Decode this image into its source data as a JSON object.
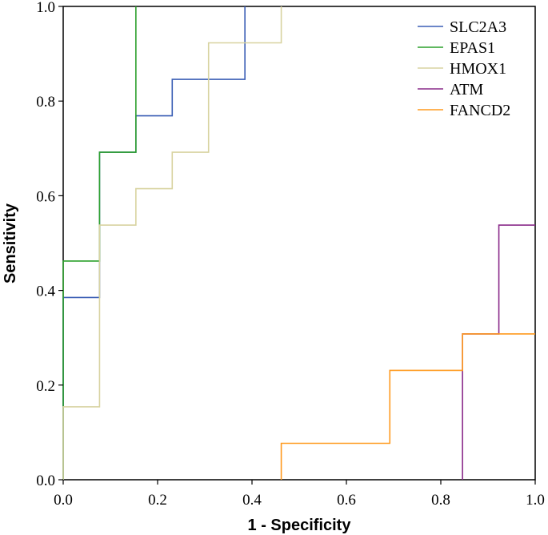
{
  "chart_data": {
    "type": "line",
    "xlabel": "1 - Specificity",
    "ylabel": "Sensitivity",
    "xlim": [
      0,
      1
    ],
    "ylim": [
      0,
      1
    ],
    "x_ticks": [
      "0.0",
      "0.2",
      "0.4",
      "0.6",
      "0.8",
      "1.0"
    ],
    "y_ticks": [
      "0.0",
      "0.2",
      "0.4",
      "0.6",
      "0.8",
      "1.0"
    ],
    "grid": false,
    "legend_position": "top-right",
    "series": [
      {
        "name": "SLC2A3",
        "color": "#3b5fb5",
        "x": [
          0,
          0,
          0.077,
          0.077,
          0.154,
          0.154,
          0.231,
          0.231,
          0.385,
          0.385
        ],
        "y": [
          0,
          0.385,
          0.385,
          0.692,
          0.692,
          0.769,
          0.769,
          0.846,
          0.846,
          1.0
        ]
      },
      {
        "name": "EPAS1",
        "color": "#2ca02c",
        "x": [
          0,
          0,
          0.077,
          0.077,
          0.154,
          0.154
        ],
        "y": [
          0,
          0.462,
          0.462,
          0.692,
          0.692,
          1.0
        ]
      },
      {
        "name": "HMOX1",
        "color": "#d8d3a0",
        "x": [
          0,
          0,
          0.077,
          0.077,
          0.154,
          0.154,
          0.231,
          0.231,
          0.308,
          0.308,
          0.462,
          0.462
        ],
        "y": [
          0,
          0.154,
          0.154,
          0.538,
          0.538,
          0.615,
          0.615,
          0.692,
          0.692,
          0.923,
          0.923,
          1.0
        ]
      },
      {
        "name": "ATM",
        "color": "#8a2b8a",
        "x": [
          0.846,
          0.846,
          0.923,
          0.923,
          1.0
        ],
        "y": [
          0,
          0.308,
          0.308,
          0.538,
          0.538
        ]
      },
      {
        "name": "FANCD2",
        "color": "#ff9a1e",
        "x": [
          0.462,
          0.462,
          0.692,
          0.692,
          0.846,
          0.846,
          1.0
        ],
        "y": [
          0,
          0.077,
          0.077,
          0.231,
          0.231,
          0.308,
          0.308
        ]
      }
    ]
  }
}
